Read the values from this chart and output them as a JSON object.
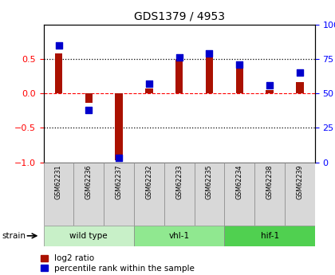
{
  "title": "GDS1379 / 4953",
  "samples": [
    "GSM62231",
    "GSM62236",
    "GSM62237",
    "GSM62232",
    "GSM62233",
    "GSM62235",
    "GSM62234",
    "GSM62238",
    "GSM62239"
  ],
  "log2_ratio": [
    0.58,
    -0.13,
    -0.97,
    0.07,
    0.5,
    0.52,
    0.42,
    0.05,
    0.17
  ],
  "percentile_rank": [
    85,
    38,
    3,
    57,
    76,
    79,
    71,
    56,
    65
  ],
  "groups": [
    {
      "label": "wild type",
      "start": 0,
      "end": 3,
      "color": "#c8f0c8"
    },
    {
      "label": "vhl-1",
      "start": 3,
      "end": 6,
      "color": "#90e890"
    },
    {
      "label": "hif-1",
      "start": 6,
      "end": 9,
      "color": "#50d050"
    }
  ],
  "ylim_left": [
    -1,
    1
  ],
  "ylim_right": [
    0,
    100
  ],
  "yticks_left": [
    -1,
    -0.5,
    0,
    0.5
  ],
  "yticks_right": [
    0,
    25,
    50,
    75,
    100
  ],
  "dotted_lines": [
    -0.5,
    0.5
  ],
  "bar_color_red": "#aa1100",
  "bar_color_blue": "#0000cc",
  "sample_bg_color": "#d8d8d8",
  "legend_red": "log2 ratio",
  "legend_blue": "percentile rank within the sample",
  "strain_label": "strain"
}
